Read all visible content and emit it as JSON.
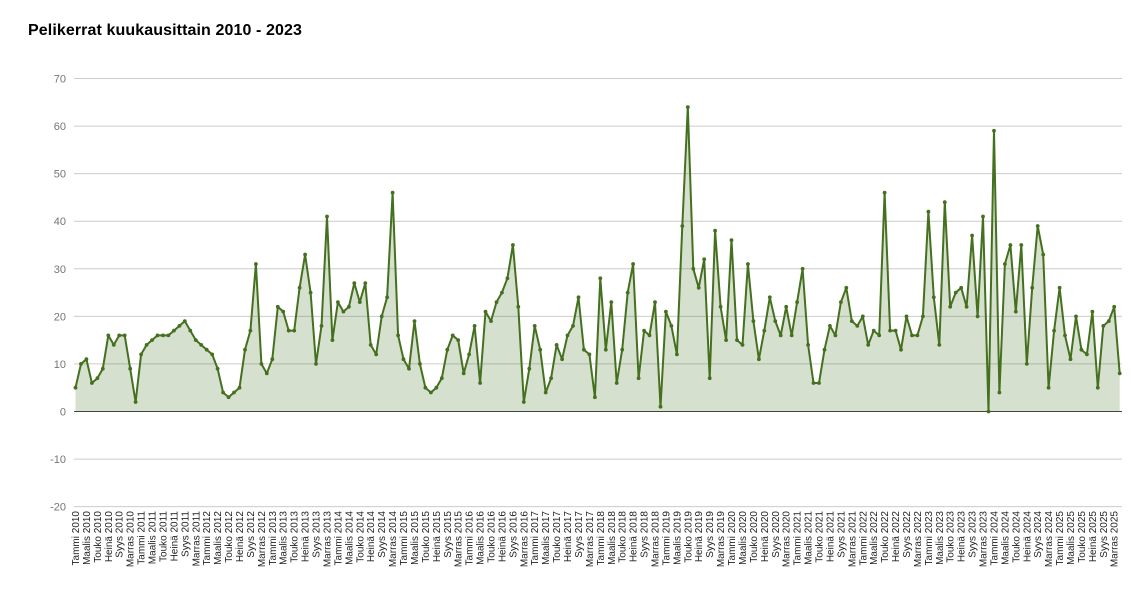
{
  "title": "Pelikerrat kuukausittain 2010 - 2023",
  "chart_data": {
    "type": "area",
    "title": "Pelikerrat kuukausittain 2010 - 2023",
    "xlabel": "",
    "ylabel": "",
    "legend": "none",
    "grid": true,
    "y_ticks": [
      70,
      60,
      50,
      40,
      30,
      20,
      10,
      0,
      -10,
      -20
    ],
    "y_range": [
      -20,
      70
    ],
    "x_tick_step_months": 2,
    "x_label_months": [
      "Tammi",
      "Maalis",
      "Touko",
      "Heinä",
      "Syys",
      "Marras"
    ],
    "x_years": [
      2010,
      2011,
      2012,
      2013,
      2014,
      2015,
      2016,
      2017,
      2018,
      2019,
      2020,
      2021,
      2022,
      2023,
      2024,
      2025
    ],
    "series": [
      {
        "name": "Pelikerrat",
        "values_by_year": {
          "2010": [
            5,
            10,
            11,
            6,
            7,
            9,
            16,
            14,
            16,
            16,
            9,
            2
          ],
          "2011": [
            12,
            14,
            15,
            16,
            16,
            16,
            17,
            18,
            19,
            17,
            15,
            14
          ],
          "2012": [
            13,
            12,
            9,
            4,
            3,
            4,
            5,
            13,
            17,
            31,
            10,
            8
          ],
          "2013": [
            11,
            22,
            21,
            17,
            17,
            26,
            33,
            25,
            10,
            18,
            41,
            15
          ],
          "2014": [
            23,
            21,
            22,
            27,
            23,
            27,
            14,
            12,
            20,
            24,
            46,
            16
          ],
          "2015": [
            11,
            9,
            19,
            10,
            5,
            4,
            5,
            7,
            13,
            16,
            15,
            8
          ],
          "2016": [
            12,
            18,
            6,
            21,
            19,
            23,
            25,
            28,
            35,
            22,
            2,
            9
          ],
          "2017": [
            18,
            13,
            4,
            7,
            14,
            11,
            16,
            18,
            24,
            13,
            12,
            3
          ],
          "2018": [
            28,
            13,
            23,
            6,
            13,
            25,
            31,
            7,
            17,
            16,
            23,
            1
          ],
          "2019": [
            21,
            18,
            12,
            39,
            64,
            30,
            26,
            32,
            7,
            38,
            22,
            15
          ],
          "2020": [
            36,
            15,
            14,
            31,
            19,
            11,
            17,
            24,
            19,
            16,
            22,
            16
          ],
          "2021": [
            23,
            30,
            14,
            6,
            6,
            13,
            18,
            16,
            23,
            26,
            19,
            18
          ],
          "2022": [
            20,
            14,
            17,
            16,
            46,
            17,
            17,
            13,
            20,
            16,
            16,
            20
          ],
          "2023": [
            42,
            24,
            14,
            44,
            22,
            25,
            26,
            22,
            37,
            20,
            41,
            0
          ],
          "2024": [
            59,
            4,
            31,
            35,
            21,
            35,
            10,
            26,
            39,
            33,
            5,
            17
          ],
          "2025": [
            26,
            16,
            11,
            20,
            13,
            12,
            21,
            5,
            18,
            19,
            22,
            8
          ]
        }
      }
    ],
    "colors": {
      "line": "#44701f",
      "fill": "rgba(68, 112, 31, 0.22)",
      "grid": "#cccccc",
      "zero_line": "#424242",
      "y_label": "#757575",
      "x_label": "#222222",
      "title": "#000000",
      "background": "#ffffff"
    }
  }
}
